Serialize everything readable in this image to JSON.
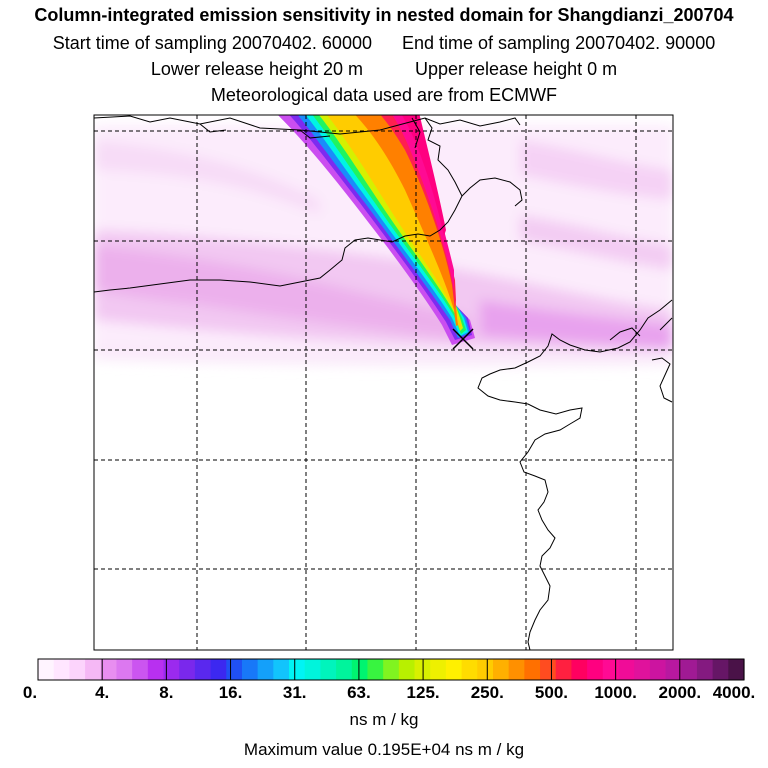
{
  "header": {
    "title": "Column-integrated emission sensitivity in nested domain for Shangdianzi_200704",
    "start_label": "Start time of sampling 20070402. 60000",
    "end_label": "End time of sampling 20070402. 90000",
    "lower_label": "Lower release height   20 m",
    "upper_label": "Upper release height    0 m",
    "met_label": "Meteorological data used are from ECMWF"
  },
  "colorbar": {
    "tick_labels": [
      "0.",
      "4.",
      "8.",
      "16.",
      "31.",
      "63.",
      "125.",
      "250.",
      "500.",
      "1000.",
      "2000.",
      "4000."
    ],
    "colors": [
      "#fff4ff",
      "#ffe6ff",
      "#fcd4fc",
      "#f5b8f5",
      "#e88ef0",
      "#dc78f0",
      "#cb55f0",
      "#b830f0",
      "#9b2aee",
      "#7a28ec",
      "#5a28ee",
      "#3c28f0",
      "#2050f4",
      "#1878f8",
      "#14a0fa",
      "#12c4fc",
      "#00f4f4",
      "#00f4dc",
      "#00f4bc",
      "#00f49c",
      "#00f470",
      "#38f440",
      "#80f420",
      "#b8f000",
      "#d8f000",
      "#eef000",
      "#fff000",
      "#ffdc00",
      "#ffcc00",
      "#ffb000",
      "#ff9000",
      "#ff7000",
      "#ff4c20",
      "#ff2040",
      "#ff0060",
      "#ff0080",
      "#ff0a94",
      "#f00c98",
      "#e0129c",
      "#cc14a0",
      "#b818a0",
      "#a01a94",
      "#841a80",
      "#661666",
      "#4a1248"
    ],
    "units": "ns m / kg"
  },
  "footer": {
    "max_value": "Maximum value  0.195E+04 ns m / kg"
  },
  "map": {
    "receptor_marker": "receptor-cross"
  }
}
